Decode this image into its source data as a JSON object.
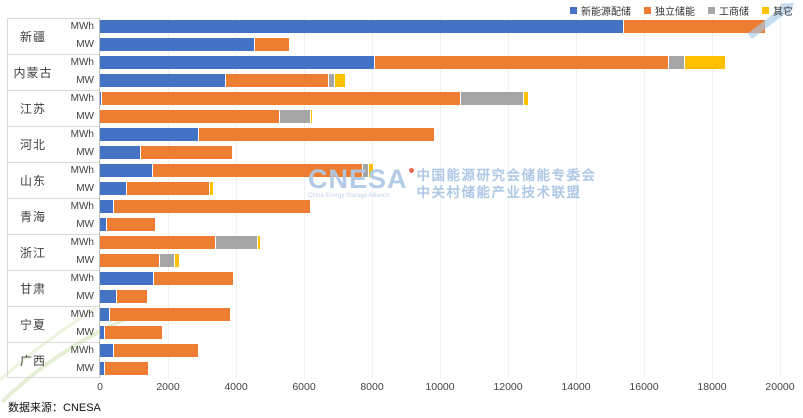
{
  "chart_data": {
    "type": "bar",
    "orientation": "horizontal-stacked",
    "title": "",
    "xlabel": "",
    "ylabel": "",
    "x_axis": {
      "min": 0,
      "max": 20000,
      "ticks": [
        0,
        2000,
        4000,
        6000,
        8000,
        10000,
        12000,
        14000,
        16000,
        18000,
        20000
      ]
    },
    "grid": "vertical-light",
    "legend_position": "top-right",
    "series": [
      {
        "name": "新能源配储",
        "color": "#4472C4"
      },
      {
        "name": "独立储能",
        "color": "#ED7D31"
      },
      {
        "name": "工商储",
        "color": "#A5A5A5"
      },
      {
        "name": "其它",
        "color": "#FFC000"
      }
    ],
    "unit_rows": [
      "MWh",
      "MW"
    ],
    "provinces": [
      {
        "name": "新疆",
        "rows": [
          {
            "unit": "MWh",
            "values": [
              15400,
              4200,
              0,
              0
            ]
          },
          {
            "unit": "MW",
            "values": [
              4550,
              1050,
              0,
              0
            ]
          }
        ]
      },
      {
        "name": "内蒙古",
        "rows": [
          {
            "unit": "MWh",
            "values": [
              8100,
              8650,
              450,
              1200
            ]
          },
          {
            "unit": "MW",
            "values": [
              3700,
              3050,
              150,
              350
            ]
          }
        ]
      },
      {
        "name": "江苏",
        "rows": [
          {
            "unit": "MWh",
            "values": [
              60,
              10550,
              1850,
              150
            ]
          },
          {
            "unit": "MW",
            "values": [
              0,
              5300,
              900,
              60
            ]
          }
        ]
      },
      {
        "name": "河北",
        "rows": [
          {
            "unit": "MWh",
            "values": [
              2900,
              6950,
              0,
              0
            ]
          },
          {
            "unit": "MW",
            "values": [
              1200,
              2700,
              0,
              0
            ]
          }
        ]
      },
      {
        "name": "山东",
        "rows": [
          {
            "unit": "MWh",
            "values": [
              1550,
              6200,
              150,
              150
            ]
          },
          {
            "unit": "MW",
            "values": [
              800,
              2450,
              0,
              100
            ]
          }
        ]
      },
      {
        "name": "青海",
        "rows": [
          {
            "unit": "MWh",
            "values": [
              400,
              5800,
              0,
              0
            ]
          },
          {
            "unit": "MW",
            "values": [
              200,
              1450,
              0,
              0
            ]
          }
        ]
      },
      {
        "name": "浙江",
        "rows": [
          {
            "unit": "MWh",
            "values": [
              0,
              3400,
              1250,
              100
            ]
          },
          {
            "unit": "MW",
            "values": [
              0,
              1750,
              450,
              150
            ]
          }
        ]
      },
      {
        "name": "甘肃",
        "rows": [
          {
            "unit": "MWh",
            "values": [
              1600,
              2350,
              0,
              0
            ]
          },
          {
            "unit": "MW",
            "values": [
              500,
              900,
              0,
              0
            ]
          }
        ]
      },
      {
        "name": "宁夏",
        "rows": [
          {
            "unit": "MWh",
            "values": [
              300,
              3550,
              0,
              0
            ]
          },
          {
            "unit": "MW",
            "values": [
              150,
              1700,
              0,
              0
            ]
          }
        ]
      },
      {
        "name": "广西",
        "rows": [
          {
            "unit": "MWh",
            "values": [
              400,
              2500,
              0,
              0
            ]
          },
          {
            "unit": "MW",
            "values": [
              150,
              1300,
              0,
              0
            ]
          }
        ]
      }
    ]
  },
  "watermark": {
    "logo": "CNESA",
    "logo_sub": "China Energy Storage Alliance",
    "line1": "中国能源研究会储能专委会",
    "line2": "中关村储能产业技术联盟"
  },
  "source": "数据来源：CNESA"
}
